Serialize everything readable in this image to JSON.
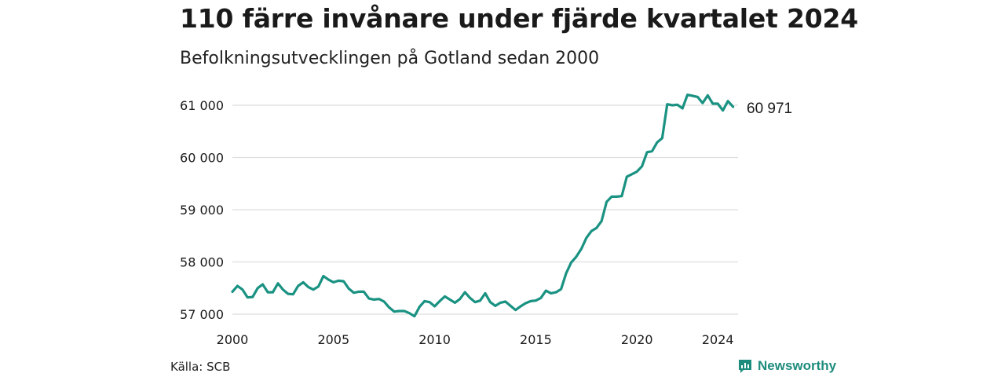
{
  "header": {
    "title": "110 färre invånare under fjärde kvartalet 2024",
    "subtitle": "Befolkningsutvecklingen på Gotland sedan 2000"
  },
  "footer": {
    "source": "Källa: SCB",
    "brand": "Newsworthy",
    "brand_icon": "bar-chart-icon"
  },
  "colors": {
    "line": "#1a9282",
    "grid": "#dedede",
    "text": "#1a1a1a",
    "brand": "#1e8c7d"
  },
  "chart_data": {
    "type": "line",
    "title": "110 färre invånare under fjärde kvartalet 2024",
    "subtitle": "Befolkningsutvecklingen på Gotland sedan 2000",
    "xlabel": "",
    "ylabel": "",
    "x_range": [
      2000.0,
      2025.0
    ],
    "ylim": [
      56900,
      61300
    ],
    "y_ticks": [
      57000,
      58000,
      59000,
      60000,
      61000
    ],
    "y_tick_labels": [
      "57 000",
      "58 000",
      "59 000",
      "60 000",
      "61 000"
    ],
    "x_ticks": [
      2000,
      2005,
      2010,
      2015,
      2020,
      2024
    ],
    "x_tick_labels": [
      "2000",
      "2005",
      "2010",
      "2015",
      "2020",
      "2024"
    ],
    "grid": true,
    "legend": "none",
    "end_label": "60 971",
    "series": [
      {
        "x": [
          "2000 Q1",
          "2000 Q2",
          "2000 Q3",
          "2000 Q4",
          "2001 Q1",
          "2001 Q2",
          "2001 Q3",
          "2001 Q4",
          "2002 Q1",
          "2002 Q2",
          "2002 Q3",
          "2002 Q4",
          "2003 Q1",
          "2003 Q2",
          "2003 Q3",
          "2003 Q4",
          "2004 Q1",
          "2004 Q2",
          "2004 Q3",
          "2004 Q4",
          "2005 Q1",
          "2005 Q2",
          "2005 Q3",
          "2005 Q4",
          "2006 Q1",
          "2006 Q2",
          "2006 Q3",
          "2006 Q4",
          "2007 Q1",
          "2007 Q2",
          "2007 Q3",
          "2007 Q4",
          "2008 Q1",
          "2008 Q2",
          "2008 Q3",
          "2008 Q4",
          "2009 Q1",
          "2009 Q2",
          "2009 Q3",
          "2009 Q4",
          "2010 Q1",
          "2010 Q2",
          "2010 Q3",
          "2010 Q4",
          "2011 Q1",
          "2011 Q2",
          "2011 Q3",
          "2011 Q4",
          "2012 Q1",
          "2012 Q2",
          "2012 Q3",
          "2012 Q4",
          "2013 Q1",
          "2013 Q2",
          "2013 Q3",
          "2013 Q4",
          "2014 Q1",
          "2014 Q2",
          "2014 Q3",
          "2014 Q4",
          "2015 Q1",
          "2015 Q2",
          "2015 Q3",
          "2015 Q4",
          "2016 Q1",
          "2016 Q2",
          "2016 Q3",
          "2016 Q4",
          "2017 Q1",
          "2017 Q2",
          "2017 Q3",
          "2017 Q4",
          "2018 Q1",
          "2018 Q2",
          "2018 Q3",
          "2018 Q4",
          "2019 Q1",
          "2019 Q2",
          "2019 Q3",
          "2019 Q4",
          "2020 Q1",
          "2020 Q2",
          "2020 Q3",
          "2020 Q4",
          "2021 Q1",
          "2021 Q2",
          "2021 Q3",
          "2021 Q4",
          "2022 Q1",
          "2022 Q2",
          "2022 Q3",
          "2022 Q4",
          "2023 Q1",
          "2023 Q2",
          "2023 Q3",
          "2023 Q4",
          "2024 Q1",
          "2024 Q2",
          "2024 Q3",
          "2024 Q4"
        ],
        "values": [
          57430,
          57540,
          57470,
          57320,
          57330,
          57500,
          57570,
          57420,
          57420,
          57590,
          57470,
          57390,
          57380,
          57540,
          57610,
          57520,
          57470,
          57530,
          57730,
          57660,
          57610,
          57640,
          57630,
          57490,
          57410,
          57430,
          57430,
          57300,
          57280,
          57290,
          57240,
          57130,
          57050,
          57060,
          57060,
          57020,
          56960,
          57140,
          57250,
          57230,
          57150,
          57250,
          57340,
          57280,
          57220,
          57290,
          57420,
          57310,
          57230,
          57260,
          57400,
          57230,
          57160,
          57220,
          57240,
          57160,
          57080,
          57150,
          57210,
          57250,
          57260,
          57310,
          57450,
          57400,
          57420,
          57480,
          57780,
          57990,
          58100,
          58250,
          58460,
          58590,
          58650,
          58780,
          59150,
          59250,
          59250,
          59260,
          59630,
          59680,
          59730,
          59830,
          60100,
          60120,
          60290,
          60370,
          61020,
          61000,
          61010,
          60940,
          61200,
          61180,
          61160,
          61040,
          61190,
          61030,
          61030,
          60900,
          61080,
          60971
        ]
      }
    ]
  }
}
